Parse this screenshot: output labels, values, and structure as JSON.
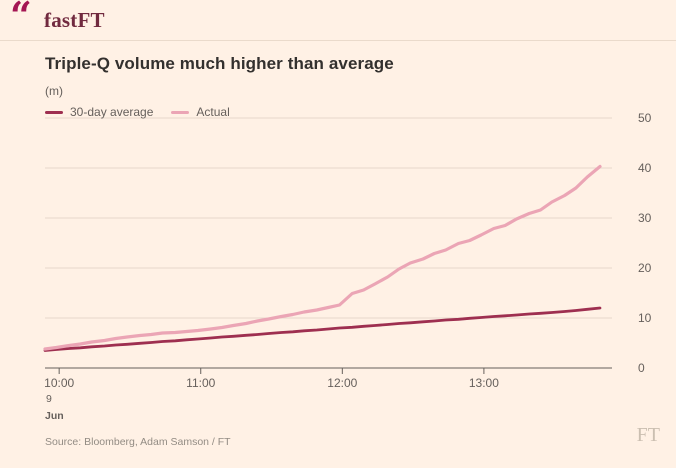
{
  "header": {
    "logo_quote": "“",
    "logo_text": "fastFT",
    "quote_color": "#A41653",
    "text_color": "#712A3F"
  },
  "chart": {
    "source": "Source: Bloomberg, Adam Samson / FT",
    "watermark": "FT"
  },
  "chart_data": {
    "type": "line",
    "title": "Triple-Q volume much higher than average",
    "unit_label": "(m)",
    "x_unit": "time of day, 9 Jun",
    "xlim": [
      9.9,
      13.82
    ],
    "ylim": [
      0,
      50
    ],
    "grid": true,
    "legend_position": "top-left",
    "x_ticks": [
      10,
      11,
      12,
      13
    ],
    "x_tick_labels": [
      "10:00",
      "11:00",
      "12:00",
      "13:00"
    ],
    "x_date": {
      "day": "9",
      "month": "Jun"
    },
    "y_ticks": [
      0,
      10,
      20,
      30,
      40,
      50
    ],
    "y_tick_labels": [
      "0",
      "10",
      "20",
      "30",
      "40",
      "50"
    ],
    "colors": {
      "grid": "#E7D8CB",
      "axis": "#66605C",
      "label": "#66605C",
      "background": "#FFF1E5"
    },
    "x": [
      9.9,
      9.98,
      10.07,
      10.15,
      10.23,
      10.32,
      10.4,
      10.48,
      10.57,
      10.65,
      10.73,
      10.82,
      10.9,
      10.98,
      11.07,
      11.15,
      11.23,
      11.32,
      11.4,
      11.48,
      11.57,
      11.65,
      11.73,
      11.82,
      11.9,
      11.98,
      12.07,
      12.15,
      12.23,
      12.32,
      12.4,
      12.48,
      12.57,
      12.65,
      12.73,
      12.82,
      12.9,
      12.98,
      13.07,
      13.15,
      13.23,
      13.32,
      13.4,
      13.48,
      13.57,
      13.65,
      13.73,
      13.82
    ],
    "series": [
      {
        "name": "30-day average",
        "color": "#9E2F50",
        "width": 2.8,
        "values": [
          3.5,
          3.7,
          3.9,
          4.05,
          4.25,
          4.4,
          4.6,
          4.75,
          4.95,
          5.1,
          5.3,
          5.45,
          5.65,
          5.8,
          6.0,
          6.2,
          6.35,
          6.55,
          6.7,
          6.9,
          7.1,
          7.25,
          7.45,
          7.6,
          7.8,
          8.0,
          8.15,
          8.35,
          8.5,
          8.7,
          8.9,
          9.05,
          9.25,
          9.4,
          9.6,
          9.75,
          9.95,
          10.1,
          10.3,
          10.45,
          10.6,
          10.8,
          10.95,
          11.1,
          11.3,
          11.5,
          11.75,
          12.0
        ]
      },
      {
        "name": "Actual",
        "color": "#EBA5B5",
        "width": 3.2,
        "values": [
          3.8,
          4.1,
          4.5,
          4.8,
          5.2,
          5.5,
          5.9,
          6.2,
          6.5,
          6.7,
          7.0,
          7.1,
          7.3,
          7.5,
          7.8,
          8.1,
          8.5,
          8.9,
          9.4,
          9.8,
          10.3,
          10.7,
          11.2,
          11.6,
          12.1,
          12.6,
          14.9,
          15.6,
          16.8,
          18.2,
          19.8,
          21.0,
          21.8,
          22.9,
          23.6,
          24.9,
          25.5,
          26.6,
          27.9,
          28.5,
          29.8,
          30.9,
          31.6,
          33.2,
          34.5,
          36.0,
          38.2,
          40.3
        ]
      }
    ]
  }
}
